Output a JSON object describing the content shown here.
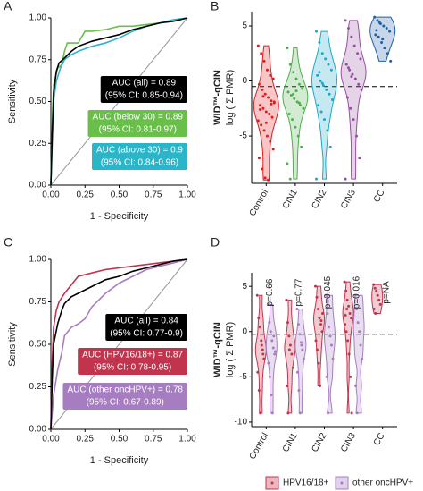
{
  "chart_data": {
    "charts": [
      {
        "type": "line",
        "label": "A",
        "x_label": "1 - Specificity",
        "y_label": "Sensitivity",
        "xlim": [
          0,
          1
        ],
        "ylim": [
          0,
          1
        ],
        "reference_line": true,
        "xticks": [
          {
            "value": 0,
            "label": "0.00"
          },
          {
            "value": 0.25,
            "label": "0.25"
          },
          {
            "value": 0.5,
            "label": "0.50"
          },
          {
            "value": 0.75,
            "label": "0.75"
          },
          {
            "value": 1,
            "label": "1.00"
          }
        ],
        "yticks": [
          {
            "value": 0,
            "label": "0.00"
          },
          {
            "value": 0.25,
            "label": "0.25"
          },
          {
            "value": 0.5,
            "label": "0.50"
          },
          {
            "value": 0.75,
            "label": "0.75"
          },
          {
            "value": 1,
            "label": "1.00"
          }
        ],
        "series": [
          {
            "color": "#6abf4b",
            "x": [
              0,
              0.01,
              0.02,
              0.05,
              0.08,
              0.1,
              0.12,
              0.2,
              0.25,
              0.3,
              0.4,
              0.5,
              0.6,
              0.7,
              0.8,
              0.9,
              1
            ],
            "values": [
              0,
              0.35,
              0.6,
              0.7,
              0.72,
              0.8,
              0.85,
              0.85,
              0.92,
              0.92,
              0.93,
              0.95,
              0.95,
              0.96,
              0.97,
              0.98,
              1
            ]
          },
          {
            "color": "#2bb5c8",
            "x": [
              0,
              0.01,
              0.02,
              0.04,
              0.07,
              0.1,
              0.15,
              0.2,
              0.3,
              0.4,
              0.5,
              0.6,
              0.7,
              0.8,
              0.9,
              1
            ],
            "values": [
              0,
              0.25,
              0.5,
              0.62,
              0.7,
              0.75,
              0.78,
              0.8,
              0.83,
              0.85,
              0.88,
              0.92,
              0.95,
              0.97,
              0.99,
              1
            ]
          },
          {
            "color": "#000000",
            "x": [
              0,
              0.01,
              0.02,
              0.04,
              0.06,
              0.1,
              0.15,
              0.2,
              0.3,
              0.4,
              0.5,
              0.6,
              0.7,
              0.8,
              0.9,
              1
            ],
            "values": [
              0,
              0.3,
              0.55,
              0.68,
              0.73,
              0.76,
              0.8,
              0.83,
              0.86,
              0.88,
              0.9,
              0.93,
              0.95,
              0.97,
              0.98,
              1
            ]
          }
        ],
        "annotations": [
          {
            "lines": [
              "AUC (all) = 0.89",
              "(95% CI: 0.85-0.94)"
            ],
            "color": "#000000"
          },
          {
            "lines": [
              "AUC (below 30) = 0.89",
              "(95% CI: 0.81-0.97)"
            ],
            "color": "#6abf4b"
          },
          {
            "lines": [
              "AUC (above 30) = 0.9",
              "(95% CI: 0.84-0.96)"
            ],
            "color": "#2bb5c8"
          }
        ]
      },
      {
        "type": "violin",
        "label": "B",
        "y_title": "WID™-qCIN",
        "y_label": "log ( Σ PMR)",
        "ylim": [
          -9.3,
          6.3
        ],
        "yticks": [
          -5,
          0,
          5
        ],
        "cutoff": -0.5,
        "categories": [
          "Control",
          "CIN1",
          "CIN2",
          "CIN3",
          "CC"
        ],
        "colors": [
          "#e41a1c",
          "#4daf4a",
          "#1ba8c7",
          "#984ea3",
          "#1f5fa8"
        ],
        "values": [
          [
            3.2,
            2.5,
            1.8,
            1.0,
            0.5,
            0.2,
            -0.3,
            -0.8,
            -1.2,
            -1.5,
            -1.8,
            -2.0,
            -2.2,
            -2.5,
            -2.8,
            -3.0,
            -3.3,
            -3.6,
            -4.0,
            -4.5,
            -5.0,
            -5.5,
            -6.2,
            -7.0,
            -8.0,
            -8.8,
            -9.0,
            -2.1,
            -1.9,
            -2.6,
            -1.4,
            -3.8
          ],
          [
            3.0,
            1.5,
            0.8,
            0.2,
            -0.3,
            -0.7,
            -1.0,
            -1.3,
            -1.6,
            -1.9,
            -2.2,
            -2.5,
            -3.0,
            -3.5,
            -4.2,
            -5.0,
            -6.0,
            -7.5,
            -8.9,
            -1.2,
            -0.9,
            -2.0
          ],
          [
            4.5,
            3.5,
            2.5,
            2.0,
            1.5,
            1.0,
            0.5,
            0.0,
            -0.4,
            -0.8,
            -1.2,
            -1.7,
            -2.2,
            -2.8,
            -3.5,
            -4.5,
            -6.0,
            -8.9,
            0.8,
            -0.2
          ],
          [
            5.5,
            4.8,
            4.0,
            3.2,
            2.5,
            2.0,
            1.5,
            1.0,
            0.6,
            0.2,
            -0.3,
            -0.8,
            -1.5,
            -2.5,
            -3.5,
            -5.0,
            -7.0,
            -8.9,
            1.2,
            0.4
          ],
          [
            5.8,
            5.5,
            5.2,
            5.0,
            4.8,
            4.5,
            4.2,
            4.0,
            3.5,
            3.0,
            2.5,
            1.8,
            4.6,
            5.3,
            3.8
          ]
        ]
      },
      {
        "type": "line",
        "label": "C",
        "x_label": "1 - Specificity",
        "y_label": "Sensitivity",
        "xlim": [
          0,
          1
        ],
        "ylim": [
          0,
          1
        ],
        "reference_line": true,
        "xticks": [
          {
            "value": 0,
            "label": "0.00"
          },
          {
            "value": 0.25,
            "label": "0.25"
          },
          {
            "value": 0.5,
            "label": "0.50"
          },
          {
            "value": 0.75,
            "label": "0.75"
          },
          {
            "value": 1,
            "label": "1.00"
          }
        ],
        "yticks": [
          {
            "value": 0,
            "label": "0.00"
          },
          {
            "value": 0.25,
            "label": "0.25"
          },
          {
            "value": 0.5,
            "label": "0.50"
          },
          {
            "value": 0.75,
            "label": "0.75"
          },
          {
            "value": 1,
            "label": "1.00"
          }
        ],
        "series": [
          {
            "color": "#c2334d",
            "x": [
              0,
              0.01,
              0.02,
              0.04,
              0.06,
              0.1,
              0.15,
              0.2,
              0.3,
              0.4,
              0.5,
              0.6,
              0.7,
              0.8,
              0.9,
              1
            ],
            "values": [
              0,
              0.4,
              0.6,
              0.7,
              0.75,
              0.8,
              0.85,
              0.9,
              0.92,
              0.94,
              0.95,
              0.96,
              0.97,
              0.98,
              0.99,
              1
            ]
          },
          {
            "color": "#a77dc2",
            "x": [
              0,
              0.02,
              0.05,
              0.08,
              0.1,
              0.15,
              0.2,
              0.25,
              0.3,
              0.4,
              0.5,
              0.6,
              0.7,
              0.8,
              0.9,
              1
            ],
            "values": [
              0,
              0.2,
              0.35,
              0.45,
              0.55,
              0.6,
              0.62,
              0.65,
              0.72,
              0.8,
              0.86,
              0.9,
              0.94,
              0.96,
              0.98,
              1
            ]
          },
          {
            "color": "#000000",
            "x": [
              0,
              0.01,
              0.02,
              0.05,
              0.08,
              0.1,
              0.15,
              0.2,
              0.3,
              0.4,
              0.5,
              0.6,
              0.7,
              0.8,
              0.9,
              1
            ],
            "values": [
              0,
              0.3,
              0.5,
              0.62,
              0.7,
              0.74,
              0.78,
              0.8,
              0.84,
              0.88,
              0.9,
              0.93,
              0.95,
              0.97,
              0.99,
              1
            ]
          }
        ],
        "annotations": [
          {
            "lines": [
              "AUC (all) = 0.84",
              "(95% CI: 0.77-0.9)"
            ],
            "color": "#000000"
          },
          {
            "lines": [
              "AUC (HPV16/18+) = 0.87",
              "(95% CI: 0.78-0.95)"
            ],
            "color": "#c2334d"
          },
          {
            "lines": [
              "AUC (other oncHPV+) = 0.78",
              "(95% CI: 0.67-0.89)"
            ],
            "color": "#a77dc2"
          }
        ]
      },
      {
        "type": "violin",
        "label": "D",
        "y_title": "WID™-qCIN",
        "y_label": "log ( Σ PMR)",
        "ylim": [
          -10.5,
          6.5
        ],
        "yticks": [
          -10,
          -5,
          0,
          5
        ],
        "cutoff": -0.3,
        "categories": [
          "Control",
          "CIN1",
          "CIN2",
          "CIN3",
          "CC"
        ],
        "pvalues": [
          "p=0.66",
          "p=0.77",
          "p=0.045",
          "p=0.016",
          "p=NA"
        ],
        "series": [
          {
            "name": "HPV16/18+",
            "color": "#c2334d",
            "values": [
              [
                4.0,
                1.5,
                0.5,
                -1.0,
                -2.0,
                -3.0,
                -4.5,
                -6.5,
                -9.0,
                -1.5,
                -2.5
              ],
              [
                3.5,
                1.0,
                -0.5,
                -1.5,
                -2.5,
                -4.0,
                -6.0,
                -9.0,
                -2.0
              ],
              [
                5.0,
                3.8,
                2.5,
                1.5,
                0.8,
                0.0,
                -1.0,
                -2.0,
                -3.5,
                -6.0,
                1.2,
                2.0
              ],
              [
                5.5,
                4.5,
                3.5,
                2.8,
                2.0,
                1.5,
                0.8,
                0.0,
                -1.0,
                -2.5,
                -5.0,
                -9.0,
                1.8,
                2.5
              ],
              [
                5.2,
                4.8,
                4.5,
                4.0,
                3.5,
                3.0,
                2.5,
                2.0
              ]
            ]
          },
          {
            "name": "other oncHPV+",
            "color": "#a77dc2",
            "values": [
              [
                3.0,
                1.0,
                0.0,
                -1.0,
                -1.8,
                -2.5,
                -3.5,
                -5.0,
                -7.0,
                -9.0,
                -0.5,
                -2.2
              ],
              [
                2.5,
                0.8,
                -0.3,
                -1.2,
                -2.0,
                -3.0,
                -4.5,
                -6.5,
                -9.0,
                -1.5
              ],
              [
                4.0,
                2.0,
                0.5,
                -0.5,
                -1.5,
                -3.0,
                -5.0,
                -9.0
              ],
              [
                4.0,
                2.5,
                1.0,
                0.0,
                -1.5,
                -3.0,
                -6.0,
                -9.0
              ],
              []
            ]
          }
        ]
      }
    ]
  }
}
